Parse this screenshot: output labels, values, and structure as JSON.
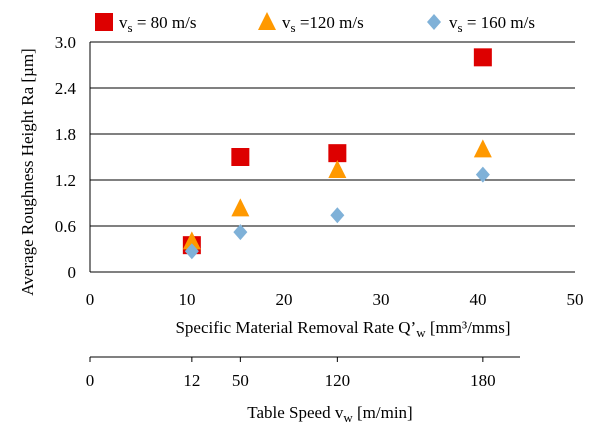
{
  "chart_data": {
    "type": "scatter",
    "xlabel": "Specific Material Removal Rate Q’",
    "xlabel_sub": "w",
    "xlabel_unit": " [mm³/mms]",
    "ylabel": "Average Roughness Height  Ra [µm]",
    "xlim": [
      0,
      50
    ],
    "ylim": [
      0,
      3.0
    ],
    "x_ticks": [
      "0",
      "10",
      "20",
      "30",
      "40",
      "50"
    ],
    "y_ticks": [
      "0",
      "0.6",
      "1.2",
      "1.8",
      "2.4",
      "3.0"
    ],
    "grid": "horizontal",
    "legend_position": "top",
    "series": [
      {
        "name_main": "v",
        "name_sub": "s",
        "name_rest": " = 80 m/s",
        "marker": "square",
        "color": "#dd0000",
        "x": [
          10.5,
          15.5,
          25.5,
          40.5
        ],
        "y": [
          0.35,
          1.5,
          1.55,
          2.8
        ]
      },
      {
        "name_main": "v",
        "name_sub": "s",
        "name_rest": " =120 m/s",
        "marker": "triangle",
        "color": "#ff9900",
        "x": [
          10.5,
          15.5,
          25.5,
          40.5
        ],
        "y": [
          0.4,
          0.83,
          1.33,
          1.6
        ]
      },
      {
        "name_main": "v",
        "name_sub": "s",
        "name_rest": " = 160 m/s",
        "marker": "diamond",
        "color": "#7fb1d8",
        "x": [
          10.5,
          15.5,
          25.5,
          40.5
        ],
        "y": [
          0.27,
          0.52,
          0.74,
          1.27
        ]
      }
    ],
    "secondary_axis": {
      "label": "Table Speed v",
      "label_sub": "w",
      "label_unit": " [m/min]",
      "ticks": [
        {
          "label": "0",
          "at_x": 0
        },
        {
          "label": "12",
          "at_x": 10.5
        },
        {
          "label": "50",
          "at_x": 15.5
        },
        {
          "label": "120",
          "at_x": 25.5
        },
        {
          "label": "180",
          "at_x": 40.5
        }
      ]
    }
  }
}
